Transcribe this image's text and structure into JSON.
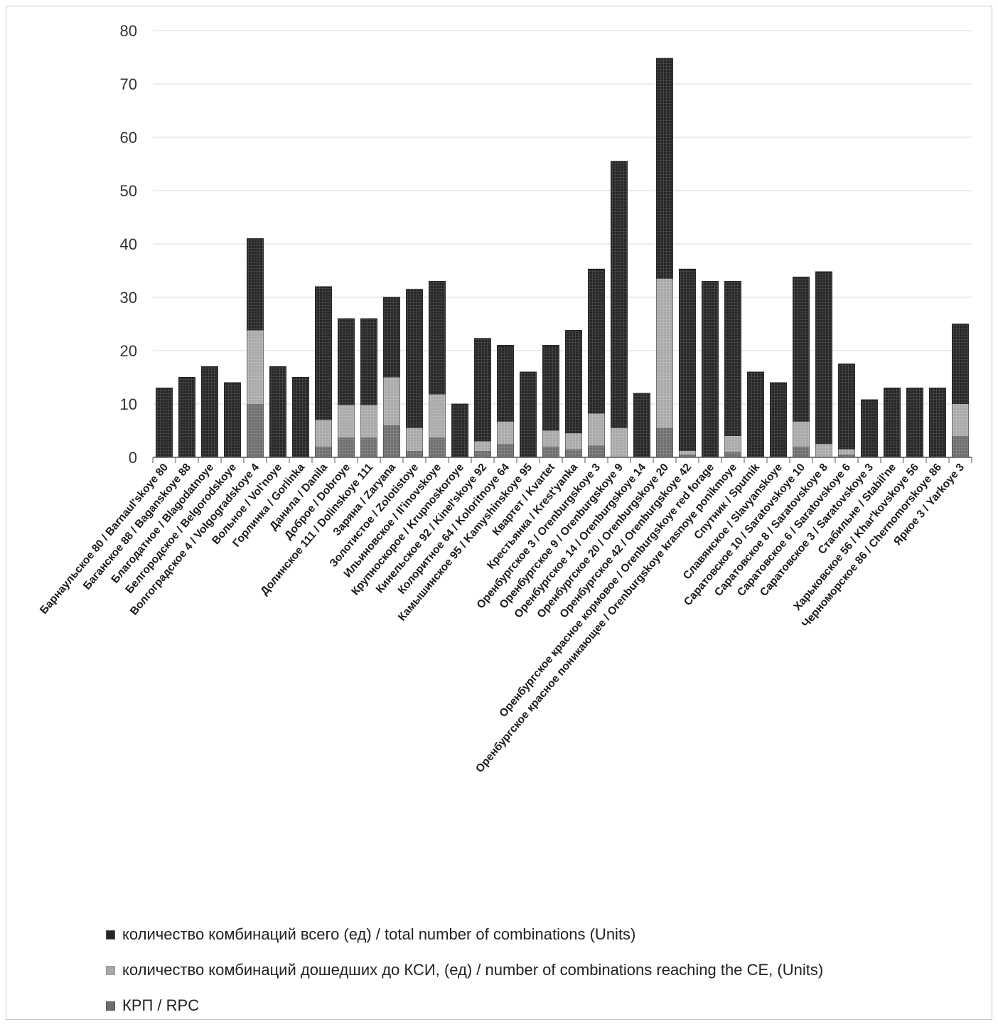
{
  "chart_data": {
    "type": "bar",
    "stacked": true,
    "stack_mode": "overlay",
    "title": "",
    "xlabel": "",
    "ylabel": "",
    "ylim": [
      0,
      80
    ],
    "yticks": [
      0,
      10,
      20,
      30,
      40,
      50,
      60,
      70,
      80
    ],
    "grid": true,
    "legend_position": "bottom-left",
    "categories": [
      "Барнаульское 80 / Barnaul'skoye 80",
      "Баганское 88 / Baganskoye 88",
      "Благодатное / Blagodatnoye",
      "Белгородское / Belgorodskoye",
      "Волгоградское 4 / Volgogradskoye 4",
      "Вольное / Vol'noye",
      "Горлинка / Gorlinka",
      "Данила / Danila",
      "Доброе / Dobroye",
      "Долинское 111 / Dolinskoye 111",
      "Заряна / Zaryana",
      "Золотистое / Zolotistoye",
      "Ильиновское / Il'inovskoye",
      "Крупноскорое / Krupnoskoroye",
      "Кинельское 92 / Kinel'skoye 92",
      "Колоритное 64 / Koloritnoye 64",
      "Камышинское 95 / Kamyshinskoye 95",
      "Квартет / Kvartet",
      "Крестьянка / Krest'yanka",
      "Оренбургское 3 / Orenburgskoye 3",
      "Оренбургское 9 / Orenburgskoye 9",
      "Оренбургское 14 / Orenburgskoye 14",
      "Оренбургское 20 / Orenburgskoye 20",
      "Оренбургское 42 / Orenburgskoye 42",
      "Оренбургское красное кормовое / Orenburgskoye red forage",
      "Оренбургское красное поникающее / Orenburgskoye krasnoye ponikmoye",
      "Спутник / Sputnik",
      "Славянское / Slavyanskoye",
      "Саратовское 10 / Saratovskoye 10",
      "Саратовское 8 / Saratovskoye 8",
      "Саратовское 6 / Saratovskoye 6",
      "Саратовское 3 / Saratovskoye 3",
      "Стабильне / Stabil'ne",
      "Харьковское 56 / Khar'kovskoye 56",
      "Черноморское 86 / Chernomorskoye 86",
      "Яркое 3 / Yarkoye 3"
    ],
    "series": [
      {
        "name": "количество комбинаций всего (ед) / total number of combinations (Units)",
        "color": "#262626",
        "values": [
          13,
          15,
          17,
          14,
          41,
          17,
          15,
          32,
          26,
          26,
          30,
          31.5,
          33,
          10,
          22.3,
          21,
          16,
          21,
          23.8,
          35.3,
          55.5,
          12,
          74.8,
          35.3,
          33,
          33,
          16,
          14,
          33.8,
          34.8,
          17.5,
          10.8,
          13,
          13,
          13,
          25
        ]
      },
      {
        "name": "количество комбинаций дошедших до КСИ, (ед) / number of combinations reaching the CE, (Units)",
        "color": "#a8a8a8",
        "values": [
          0,
          0,
          0,
          0,
          23.8,
          0,
          0,
          7,
          9.8,
          9.8,
          15,
          5.5,
          11.8,
          0,
          3,
          6.7,
          0,
          5,
          4.5,
          8.2,
          5.5,
          0,
          33.5,
          1.2,
          0,
          4,
          0,
          0,
          6.7,
          2.5,
          1.5,
          0,
          0,
          0,
          0,
          10
        ]
      },
      {
        "name": "КРП / RPC",
        "color": "#6e6e6e",
        "values": [
          0,
          0,
          0,
          0,
          10,
          0,
          0,
          2,
          3.7,
          3.7,
          6,
          1.2,
          3.7,
          0,
          1.2,
          2.5,
          0,
          2,
          1.5,
          2.2,
          0,
          0,
          5.5,
          0.5,
          0,
          1,
          0,
          0,
          2,
          0,
          0.5,
          0,
          0,
          0,
          0,
          4
        ]
      }
    ]
  }
}
